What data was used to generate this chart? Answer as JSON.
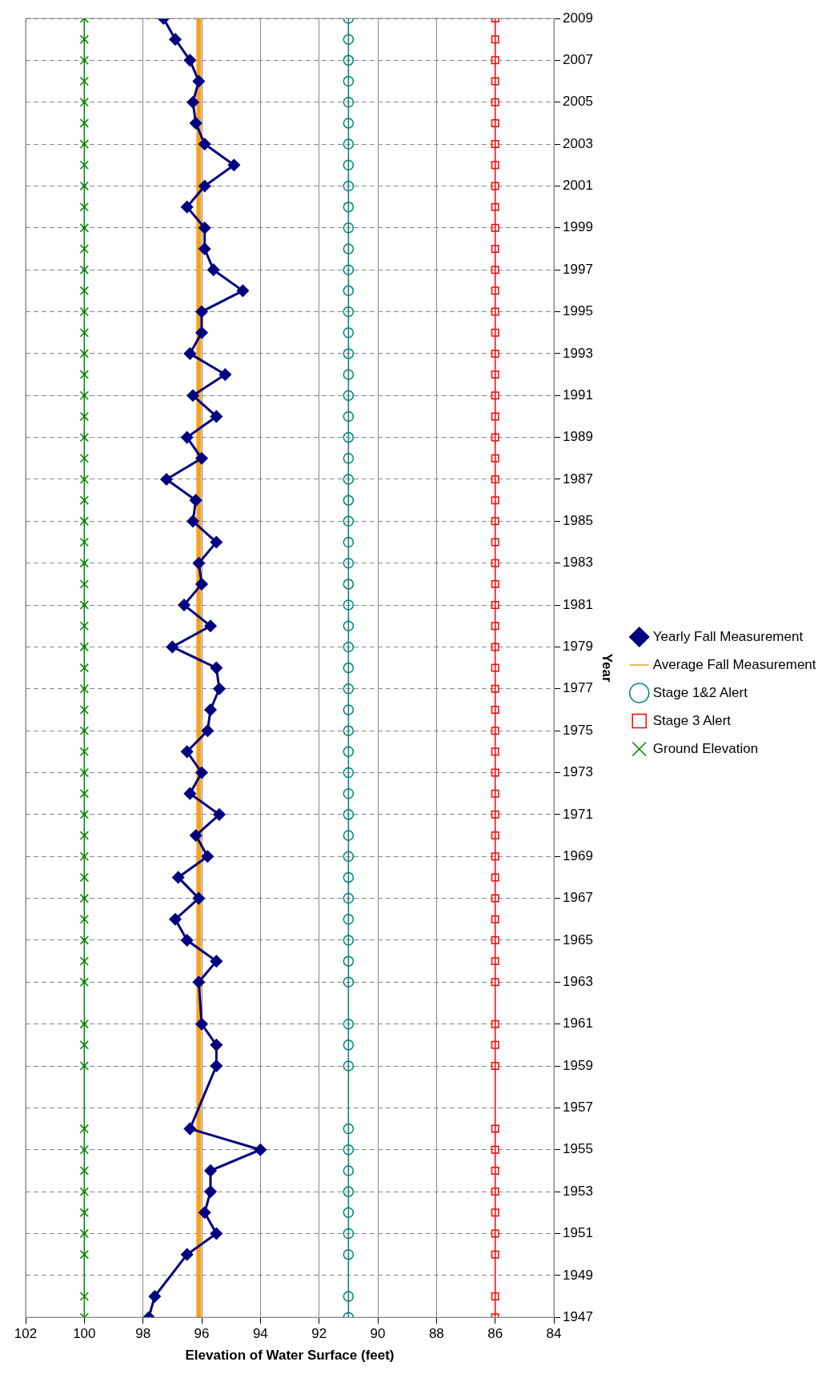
{
  "chart_data": {
    "type": "line",
    "xlabel": "Elevation of Water Surface (feet)",
    "ylabel": "Year",
    "xlim": [
      102,
      84
    ],
    "xticks": [
      102,
      100,
      98,
      96,
      94,
      92,
      90,
      88,
      86,
      84
    ],
    "ylim": [
      1947,
      2009
    ],
    "yticks": [
      1947,
      1949,
      1951,
      1953,
      1955,
      1957,
      1959,
      1961,
      1963,
      1965,
      1967,
      1969,
      1971,
      1973,
      1975,
      1977,
      1979,
      1981,
      1983,
      1985,
      1987,
      1989,
      1991,
      1993,
      1995,
      1997,
      1999,
      2001,
      2003,
      2005,
      2007,
      2009
    ],
    "grid": true,
    "legend": "right",
    "series": [
      {
        "name": "Yearly Fall Measurement",
        "color": "#000080",
        "marker": "diamond",
        "x": [
          97.8,
          97.6,
          96.5,
          95.5,
          95.9,
          95.7,
          95.7,
          94.0,
          96.4,
          95.5,
          95.5,
          96.0,
          96.1,
          95.5,
          96.5,
          96.9,
          96.1,
          96.8,
          95.8,
          96.2,
          95.4,
          96.4,
          96.0,
          96.5,
          95.8,
          95.7,
          95.4,
          95.5,
          97.0,
          95.7,
          96.6,
          96.0,
          96.1,
          95.5,
          96.3,
          96.2,
          97.2,
          96.0,
          96.5,
          95.5,
          96.3,
          95.2,
          96.4,
          96.0,
          96.0,
          94.6,
          95.6,
          95.9,
          95.9,
          96.5,
          95.9,
          94.9,
          95.9,
          96.2,
          96.3,
          96.1,
          96.4,
          96.9,
          97.3
        ],
        "values": [
          1947,
          1948,
          1950,
          1951,
          1952,
          1953,
          1954,
          1955,
          1956,
          1959,
          1960,
          1961,
          1963,
          1964,
          1965,
          1966,
          1967,
          1968,
          1969,
          1970,
          1971,
          1972,
          1973,
          1974,
          1975,
          1976,
          1977,
          1978,
          1979,
          1980,
          1981,
          1982,
          1983,
          1984,
          1985,
          1986,
          1987,
          1988,
          1989,
          1990,
          1991,
          1992,
          1993,
          1994,
          1995,
          1996,
          1997,
          1998,
          1999,
          2000,
          2001,
          2002,
          2003,
          2004,
          2005,
          2006,
          2007,
          2008,
          2009
        ]
      },
      {
        "name": "Average Fall Measurement",
        "color": "#f7a11a",
        "marker": "none",
        "x": [
          96.1,
          96.1
        ],
        "values": [
          1947,
          2009
        ]
      },
      {
        "name": "Stage 1&2 Alert",
        "color": "#008080",
        "marker": "circle",
        "x": [
          91,
          91,
          91,
          91,
          91,
          91,
          91,
          91,
          91,
          91,
          91,
          91,
          91,
          91,
          91,
          91,
          91,
          91,
          91,
          91,
          91,
          91,
          91,
          91,
          91,
          91,
          91,
          91,
          91,
          91,
          91,
          91,
          91,
          91,
          91,
          91,
          91,
          91,
          91,
          91,
          91,
          91,
          91,
          91,
          91,
          91,
          91,
          91,
          91,
          91,
          91,
          91,
          91,
          91,
          91,
          91,
          91,
          91,
          91
        ],
        "values": [
          1947,
          1948,
          1950,
          1951,
          1952,
          1953,
          1954,
          1955,
          1956,
          1959,
          1960,
          1961,
          1963,
          1964,
          1965,
          1966,
          1967,
          1968,
          1969,
          1970,
          1971,
          1972,
          1973,
          1974,
          1975,
          1976,
          1977,
          1978,
          1979,
          1980,
          1981,
          1982,
          1983,
          1984,
          1985,
          1986,
          1987,
          1988,
          1989,
          1990,
          1991,
          1992,
          1993,
          1994,
          1995,
          1996,
          1997,
          1998,
          1999,
          2000,
          2001,
          2002,
          2003,
          2004,
          2005,
          2006,
          2007,
          2008,
          2009
        ]
      },
      {
        "name": "Stage 3 Alert",
        "color": "#ff0000",
        "marker": "square",
        "x": [
          86,
          86,
          86,
          86,
          86,
          86,
          86,
          86,
          86,
          86,
          86,
          86,
          86,
          86,
          86,
          86,
          86,
          86,
          86,
          86,
          86,
          86,
          86,
          86,
          86,
          86,
          86,
          86,
          86,
          86,
          86,
          86,
          86,
          86,
          86,
          86,
          86,
          86,
          86,
          86,
          86,
          86,
          86,
          86,
          86,
          86,
          86,
          86,
          86,
          86,
          86,
          86,
          86,
          86,
          86,
          86,
          86,
          86,
          86
        ],
        "values": [
          1947,
          1948,
          1950,
          1951,
          1952,
          1953,
          1954,
          1955,
          1956,
          1959,
          1960,
          1961,
          1963,
          1964,
          1965,
          1966,
          1967,
          1968,
          1969,
          1970,
          1971,
          1972,
          1973,
          1974,
          1975,
          1976,
          1977,
          1978,
          1979,
          1980,
          1981,
          1982,
          1983,
          1984,
          1985,
          1986,
          1987,
          1988,
          1989,
          1990,
          1991,
          1992,
          1993,
          1994,
          1995,
          1996,
          1997,
          1998,
          1999,
          2000,
          2001,
          2002,
          2003,
          2004,
          2005,
          2006,
          2007,
          2008,
          2009
        ]
      },
      {
        "name": "Ground Elevation",
        "color": "#008000",
        "marker": "cross",
        "x": [
          100,
          100,
          100,
          100,
          100,
          100,
          100,
          100,
          100,
          100,
          100,
          100,
          100,
          100,
          100,
          100,
          100,
          100,
          100,
          100,
          100,
          100,
          100,
          100,
          100,
          100,
          100,
          100,
          100,
          100,
          100,
          100,
          100,
          100,
          100,
          100,
          100,
          100,
          100,
          100,
          100,
          100,
          100,
          100,
          100,
          100,
          100,
          100,
          100,
          100,
          100,
          100,
          100,
          100,
          100,
          100,
          100,
          100,
          100
        ],
        "values": [
          1947,
          1948,
          1950,
          1951,
          1952,
          1953,
          1954,
          1955,
          1956,
          1959,
          1960,
          1961,
          1963,
          1964,
          1965,
          1966,
          1967,
          1968,
          1969,
          1970,
          1971,
          1972,
          1973,
          1974,
          1975,
          1976,
          1977,
          1978,
          1979,
          1980,
          1981,
          1982,
          1983,
          1984,
          1985,
          1986,
          1987,
          1988,
          1989,
          1990,
          1991,
          1992,
          1993,
          1994,
          1995,
          1996,
          1997,
          1998,
          1999,
          2000,
          2001,
          2002,
          2003,
          2004,
          2005,
          2006,
          2007,
          2008,
          2009
        ]
      }
    ]
  }
}
